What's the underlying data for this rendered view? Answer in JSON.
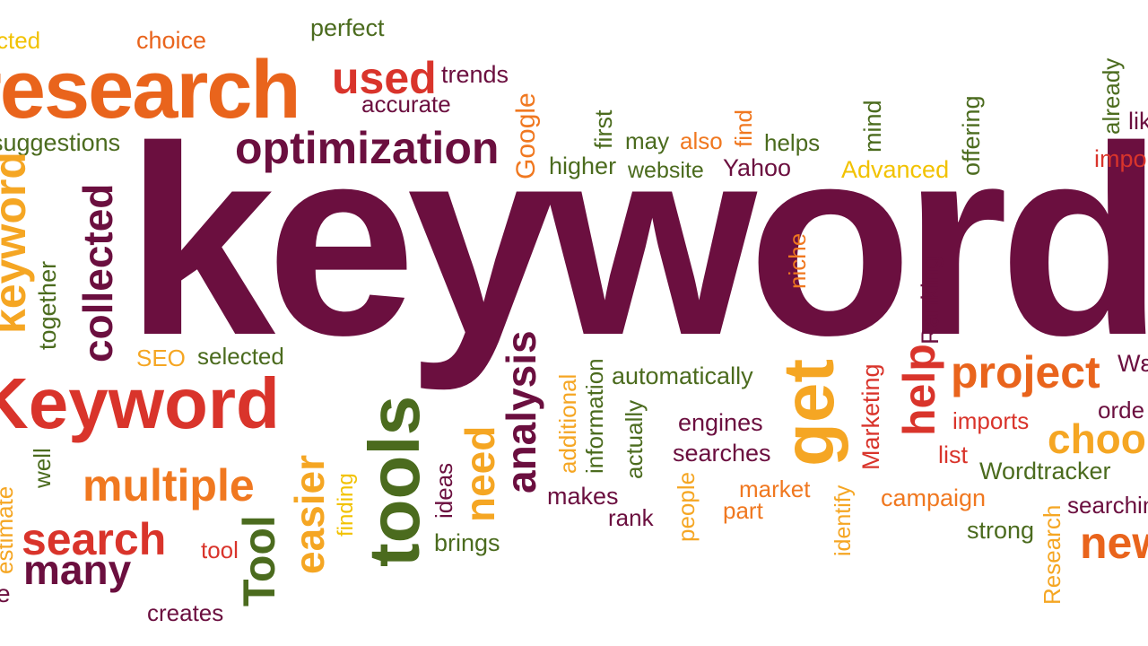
{
  "palette": {
    "plum": "#6b0f3f",
    "red": "#d9342b",
    "orange": "#f07820",
    "darkorange": "#e9641c",
    "olive": "#4b6b1e",
    "amber": "#f5a623",
    "yellow": "#f2c200"
  },
  "words": [
    "keywords",
    "research",
    "used",
    "trends",
    "accurate",
    "choice",
    "perfect",
    "cted",
    "suggestions",
    "optimization",
    "Google",
    "first",
    "may",
    "also",
    "find",
    "helps",
    "mind",
    "offering",
    "already",
    "like",
    "impo",
    "higher",
    "website",
    "Yahoo",
    "Advanced",
    "keyword",
    "collected",
    "together",
    "Keyword",
    "SEO",
    "selected",
    "analysis",
    "niche",
    "Ranking",
    "project",
    "Wε",
    "help",
    "get",
    "automatically",
    "additional",
    "information",
    "engines",
    "imports",
    "orde",
    "choo",
    "actually",
    "searches",
    "list",
    "Wordtracker",
    "Marketing",
    "estimate",
    "well",
    "multiple",
    "easier",
    "tools",
    "need",
    "ideas",
    "finding",
    "makes",
    "market",
    "campaign",
    "searchin",
    "search",
    "tool",
    "Tool",
    "brings",
    "rank",
    "people",
    "part",
    "identify",
    "strong",
    "Research",
    "new",
    "many",
    "creates",
    "e"
  ]
}
